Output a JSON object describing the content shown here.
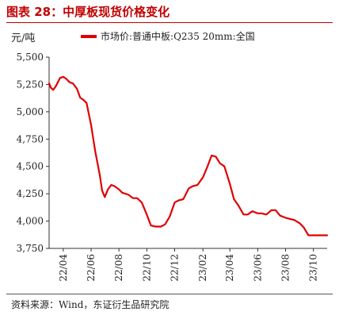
{
  "title": "图表 28：中厚板现货价格变化",
  "unit_label": "元/吨",
  "source": "资料来源：Wind，东证衍生品研究院",
  "colors": {
    "title": "#c00000",
    "series": "#e00000"
  },
  "chart_data": {
    "type": "line",
    "title": "图表 28：中厚板现货价格变化",
    "ylabel": "元/吨",
    "xlabel": "",
    "ylim": [
      3750,
      5500
    ],
    "yticks": [
      3750,
      4000,
      4250,
      4500,
      4750,
      5000,
      5250,
      5500
    ],
    "ytick_labels": [
      "3,750",
      "4,000",
      "4,250",
      "4,500",
      "4,750",
      "5,000",
      "5,250",
      "5,500"
    ],
    "xlim": [
      "2022-03-01",
      "2023-10-31"
    ],
    "xticks": [
      "2022-04-01",
      "2022-06-01",
      "2022-08-01",
      "2022-10-01",
      "2022-12-01",
      "2023-02-01",
      "2023-04-01",
      "2023-06-01",
      "2023-08-01",
      "2023-10-01"
    ],
    "xtick_labels": [
      "22/04",
      "22/06",
      "22/08",
      "22/10",
      "22/12",
      "23/02",
      "23/04",
      "23/06",
      "23/08",
      "23/10"
    ],
    "grid": false,
    "legend": "top",
    "series": [
      {
        "name": "市场价:普通中板:Q235 20mm:全国",
        "x": [
          "2022-03-01",
          "2022-03-05",
          "2022-03-10",
          "2022-03-15",
          "2022-03-20",
          "2022-03-25",
          "2022-04-01",
          "2022-04-08",
          "2022-04-15",
          "2022-04-22",
          "2022-05-01",
          "2022-05-08",
          "2022-05-15",
          "2022-05-22",
          "2022-06-01",
          "2022-06-10",
          "2022-06-20",
          "2022-06-25",
          "2022-07-01",
          "2022-07-08",
          "2022-07-15",
          "2022-07-22",
          "2022-08-01",
          "2022-08-08",
          "2022-08-15",
          "2022-08-22",
          "2022-09-01",
          "2022-09-10",
          "2022-09-20",
          "2022-10-01",
          "2022-10-10",
          "2022-10-20",
          "2022-11-01",
          "2022-11-10",
          "2022-11-20",
          "2022-12-01",
          "2022-12-10",
          "2022-12-20",
          "2023-01-01",
          "2023-01-10",
          "2023-01-20",
          "2023-02-01",
          "2023-02-10",
          "2023-02-20",
          "2023-03-01",
          "2023-03-10",
          "2023-03-20",
          "2023-04-01",
          "2023-04-10",
          "2023-04-20",
          "2023-05-01",
          "2023-05-10",
          "2023-05-20",
          "2023-06-01",
          "2023-06-10",
          "2023-06-20",
          "2023-07-01",
          "2023-07-10",
          "2023-07-20",
          "2023-08-01",
          "2023-08-10",
          "2023-08-20",
          "2023-09-01",
          "2023-09-10",
          "2023-09-20",
          "2023-10-01",
          "2023-10-10",
          "2023-10-20",
          "2023-10-31"
        ],
        "values": [
          5260,
          5220,
          5200,
          5230,
          5270,
          5310,
          5320,
          5300,
          5270,
          5260,
          5210,
          5130,
          5110,
          5080,
          4880,
          4640,
          4420,
          4280,
          4220,
          4290,
          4330,
          4320,
          4290,
          4260,
          4250,
          4240,
          4210,
          4210,
          4170,
          4060,
          3960,
          3950,
          3950,
          3970,
          4040,
          4170,
          4190,
          4200,
          4300,
          4320,
          4330,
          4400,
          4490,
          4600,
          4590,
          4530,
          4500,
          4340,
          4200,
          4140,
          4060,
          4060,
          4090,
          4070,
          4070,
          4060,
          4100,
          4100,
          4050,
          4030,
          4020,
          4010,
          3980,
          3940,
          3870,
          3870,
          3870,
          3870,
          3870
        ]
      }
    ]
  }
}
